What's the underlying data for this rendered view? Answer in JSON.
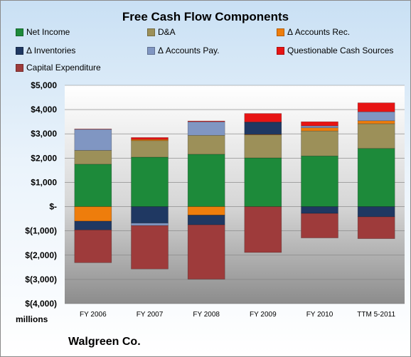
{
  "chart_data": {
    "type": "bar",
    "stacked": true,
    "title": "Free Cash Flow Components",
    "units_label": "millions",
    "company": "Walgreen Co.",
    "categories": [
      "FY 2006",
      "FY 2007",
      "FY 2008",
      "FY 2009",
      "FY 2010",
      "TTM 5-2011"
    ],
    "ylim": [
      -4000,
      5000
    ],
    "yticks": [
      -4000,
      -3000,
      -2000,
      -1000,
      0,
      1000,
      2000,
      3000,
      4000,
      5000
    ],
    "ytick_labels": [
      "$(4,000)",
      "$(3,000)",
      "$(2,000)",
      "$(1,000)",
      "$-",
      "$1,000",
      "$2,000",
      "$3,000",
      "$4,000",
      "$5,000"
    ],
    "legend_position": "top",
    "series": [
      {
        "name": "Net Income",
        "color": "#1d8a3a",
        "values": [
          1750,
          2040,
          2160,
          2010,
          2090,
          2400
        ]
      },
      {
        "name": "D&A",
        "color": "#9c9059",
        "values": [
          570,
          680,
          780,
          950,
          1030,
          1020
        ]
      },
      {
        "name": "Δ Accounts Rec.",
        "color": "#ee7d0c",
        "values": [
          -600,
          50,
          -350,
          20,
          130,
          120
        ]
      },
      {
        "name": "Δ Inventories",
        "color": "#1f3862",
        "values": [
          -360,
          -680,
          -400,
          500,
          -280,
          -420
        ]
      },
      {
        "name": "Δ Accounts Pay.",
        "color": "#8096c2",
        "values": [
          870,
          -100,
          560,
          10,
          80,
          370
        ]
      },
      {
        "name": "Questionable Cash Sources",
        "color": "#e71414",
        "values": [
          10,
          80,
          30,
          350,
          170,
          370
        ]
      },
      {
        "name": "Capital Expenditure",
        "color": "#9e3b3b",
        "values": [
          -1350,
          -1790,
          -2240,
          -1890,
          -1010,
          -900
        ]
      }
    ]
  }
}
